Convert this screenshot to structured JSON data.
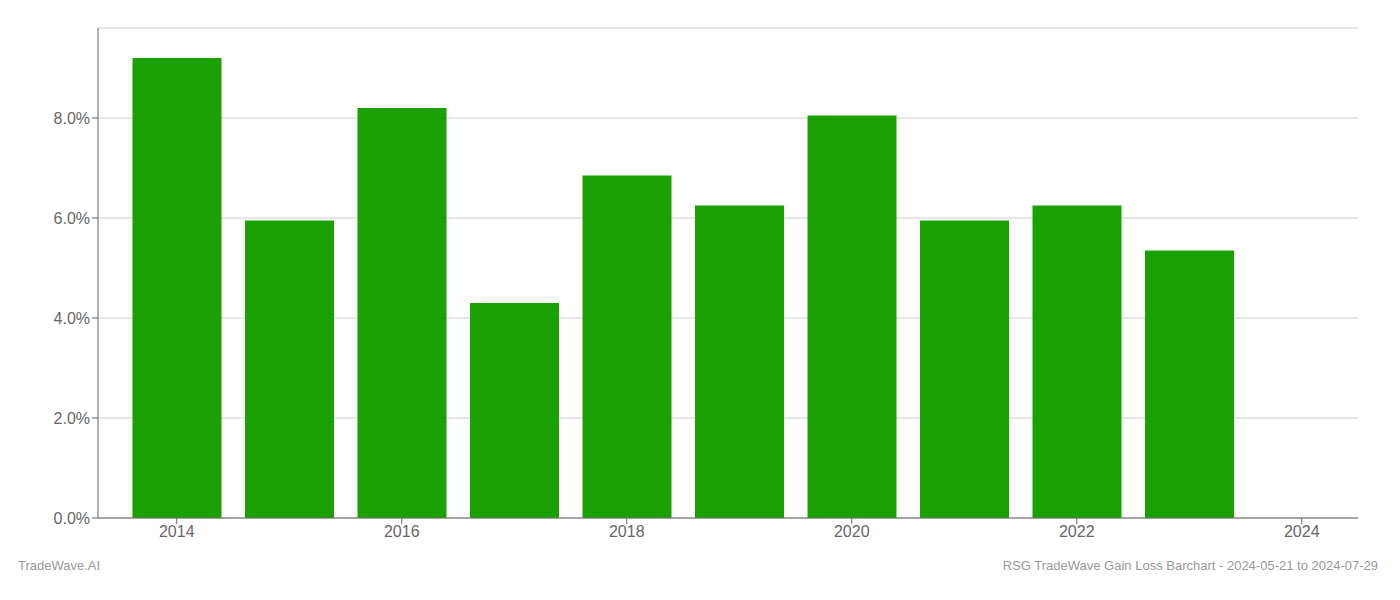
{
  "chart_data": {
    "type": "bar",
    "x": [
      2014,
      2015,
      2016,
      2017,
      2018,
      2019,
      2020,
      2021,
      2022,
      2023
    ],
    "values": [
      0.092,
      0.0595,
      0.082,
      0.043,
      0.0685,
      0.0625,
      0.0805,
      0.0595,
      0.0625,
      0.0535
    ],
    "color": "#1aA000",
    "xlim": [
      2013.3,
      2024.5
    ],
    "xticks": [
      2014,
      2016,
      2018,
      2020,
      2022,
      2024
    ],
    "ylim": [
      0,
      0.098
    ],
    "yticks": [
      {
        "value": 0.0,
        "label": "0.0%"
      },
      {
        "value": 0.02,
        "label": "2.0%"
      },
      {
        "value": 0.04,
        "label": "4.0%"
      },
      {
        "value": 0.06,
        "label": "6.0%"
      },
      {
        "value": 0.08,
        "label": "8.0%"
      }
    ],
    "grid": true,
    "annotations": [
      "TradeWave.AI",
      "RSG TradeWave Gain Loss Barchart - 2024-05-21 to 2024-07-29"
    ]
  }
}
